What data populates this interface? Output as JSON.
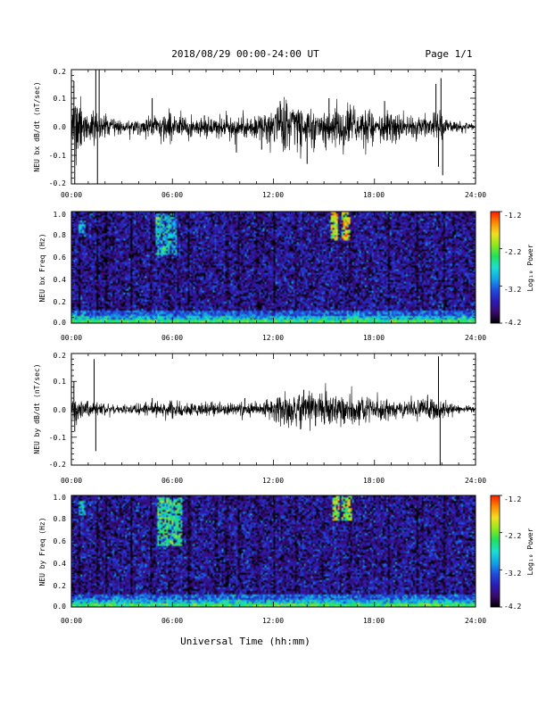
{
  "header": {
    "title": "2018/08/29  00:00-24:00 UT",
    "page": "Page 1/1"
  },
  "footer": {
    "xlabel": "Universal Time (hh:mm)"
  },
  "colors": {
    "trace": "#000000",
    "colorbar_stops": [
      "#000000",
      "#3a0a6e",
      "#2a1db8",
      "#1f4fe0",
      "#12a6e8",
      "#19e0d0",
      "#22e05a",
      "#8fe81c",
      "#f0e020",
      "#ff8a00",
      "#ff1a00"
    ]
  },
  "chart_data": [
    {
      "id": "bx-waveform",
      "type": "line",
      "ylabel": "NEU bx dB/dt (nT/sec)",
      "xlim": [
        0,
        24
      ],
      "ylim": [
        -0.2,
        0.2
      ],
      "xtick_labels": [
        "00:00",
        "06:00",
        "12:00",
        "18:00",
        "24:00"
      ],
      "ytick_labels": [
        "0.2",
        "0.1",
        "0.0",
        "-0.1",
        "-0.2"
      ],
      "ytick_values": [
        0.2,
        0.1,
        0.0,
        -0.1,
        -0.2
      ],
      "envelope": {
        "x_hours": [
          0,
          0.3,
          0.8,
          1.5,
          2.5,
          3.5,
          4.5,
          5.5,
          6.5,
          7.5,
          8.5,
          9.5,
          10.5,
          11.5,
          12.0,
          12.5,
          13.5,
          14.5,
          15.5,
          16.5,
          17.5,
          18.5,
          19.5,
          20.5,
          21.5,
          22.0,
          22.5,
          23.5,
          24.0
        ],
        "amplitude": [
          0.05,
          0.12,
          0.06,
          0.04,
          0.025,
          0.02,
          0.03,
          0.04,
          0.035,
          0.03,
          0.03,
          0.035,
          0.03,
          0.04,
          0.06,
          0.075,
          0.07,
          0.06,
          0.065,
          0.06,
          0.05,
          0.045,
          0.04,
          0.035,
          0.045,
          0.05,
          0.02,
          0.012,
          0.01
        ]
      },
      "spikes": [
        {
          "x": 0.15,
          "y": 0.16
        },
        {
          "x": 0.2,
          "y": -0.2
        },
        {
          "x": 1.45,
          "y": 0.2
        },
        {
          "x": 1.55,
          "y": -0.2
        },
        {
          "x": 1.65,
          "y": 0.2
        },
        {
          "x": 4.8,
          "y": 0.1
        },
        {
          "x": 7.9,
          "y": 0.04
        },
        {
          "x": 9.8,
          "y": -0.09
        },
        {
          "x": 11.3,
          "y": -0.08
        },
        {
          "x": 12.4,
          "y": 0.09
        },
        {
          "x": 14.0,
          "y": -0.13
        },
        {
          "x": 15.3,
          "y": 0.1
        },
        {
          "x": 18.6,
          "y": 0.09
        },
        {
          "x": 21.65,
          "y": 0.15
        },
        {
          "x": 21.8,
          "y": -0.14
        },
        {
          "x": 21.95,
          "y": 0.17
        },
        {
          "x": 22.05,
          "y": -0.17
        }
      ]
    },
    {
      "id": "bx-spectrogram",
      "type": "heatmap",
      "ylabel": "NEU bx Freq (Hz)",
      "xlim": [
        0,
        24
      ],
      "ylim": [
        0.0,
        1.0
      ],
      "xtick_labels": [
        "00:00",
        "06:00",
        "12:00",
        "18:00",
        "24:00"
      ],
      "ytick_labels": [
        "1.0",
        "0.8",
        "0.6",
        "0.4",
        "0.2",
        "0.0"
      ],
      "ytick_values": [
        1.0,
        0.8,
        0.6,
        0.4,
        0.2,
        0.0
      ],
      "colorbar_label": "Log₁₀ Power",
      "colorbar_tick_labels": [
        "-1.2",
        "-2.2",
        "-3.2",
        "-4.2"
      ],
      "colorbar_tick_values": [
        -1.2,
        -2.2,
        -3.2,
        -4.2
      ],
      "zlim": [
        -4.2,
        -1.2
      ],
      "dark_columns_hours": [
        0.4,
        1.5,
        2.0,
        3.5,
        4.7,
        5.8,
        6.9,
        9.2,
        9.9,
        11.0,
        12.0,
        13.3,
        16.5,
        18.8,
        20.5,
        22.1
      ],
      "bright_blobs": [
        {
          "t0": 4.9,
          "t1": 6.2,
          "f0": 0.62,
          "f1": 0.98,
          "power": -2.9
        },
        {
          "t0": 15.3,
          "t1": 15.8,
          "f0": 0.74,
          "f1": 1.0,
          "power": -1.9
        },
        {
          "t0": 16.0,
          "t1": 16.5,
          "f0": 0.74,
          "f1": 1.0,
          "power": -1.9
        },
        {
          "t0": 0.4,
          "t1": 0.8,
          "f0": 0.78,
          "f1": 0.92,
          "power": -3.0
        }
      ]
    },
    {
      "id": "by-waveform",
      "type": "line",
      "ylabel": "NEU by dB/dt (nT/sec)",
      "xlim": [
        0,
        24
      ],
      "ylim": [
        -0.2,
        0.2
      ],
      "xtick_labels": [
        "00:00",
        "06:00",
        "12:00",
        "18:00",
        "24:00"
      ],
      "ytick_labels": [
        "0.2",
        "0.1",
        "0.0",
        "-0.1",
        "-0.2"
      ],
      "ytick_values": [
        0.2,
        0.1,
        0.0,
        -0.1,
        -0.2
      ],
      "envelope": {
        "x_hours": [
          0,
          0.3,
          0.8,
          1.5,
          2.5,
          3.5,
          4.5,
          5.5,
          6.5,
          7.5,
          8.5,
          9.5,
          10.5,
          11.5,
          12.0,
          12.5,
          13.5,
          14.5,
          15.5,
          16.5,
          17.5,
          18.5,
          19.5,
          20.5,
          21.5,
          22.0,
          22.5,
          23.5,
          24.0
        ],
        "amplitude": [
          0.025,
          0.04,
          0.03,
          0.02,
          0.015,
          0.015,
          0.02,
          0.025,
          0.025,
          0.02,
          0.02,
          0.02,
          0.02,
          0.025,
          0.035,
          0.045,
          0.055,
          0.05,
          0.05,
          0.045,
          0.04,
          0.035,
          0.03,
          0.03,
          0.035,
          0.03,
          0.015,
          0.01,
          0.01
        ]
      },
      "spikes": [
        {
          "x": 0.15,
          "y": 0.1
        },
        {
          "x": 0.2,
          "y": -0.08
        },
        {
          "x": 1.35,
          "y": 0.18
        },
        {
          "x": 1.45,
          "y": -0.15
        },
        {
          "x": 4.8,
          "y": 0.04
        },
        {
          "x": 10.3,
          "y": 0.04
        },
        {
          "x": 13.8,
          "y": 0.07
        },
        {
          "x": 14.5,
          "y": -0.06
        },
        {
          "x": 21.8,
          "y": 0.19
        },
        {
          "x": 21.9,
          "y": -0.2
        }
      ]
    },
    {
      "id": "by-spectrogram",
      "type": "heatmap",
      "ylabel": "NEU by Freq (Hz)",
      "xlim": [
        0,
        24
      ],
      "ylim": [
        0.0,
        1.0
      ],
      "xtick_labels": [
        "00:00",
        "06:00",
        "12:00",
        "18:00",
        "24:00"
      ],
      "ytick_labels": [
        "1.0",
        "0.8",
        "0.6",
        "0.4",
        "0.2",
        "0.0"
      ],
      "ytick_values": [
        1.0,
        0.8,
        0.6,
        0.4,
        0.2,
        0.0
      ],
      "colorbar_label": "Log₁₀ Power",
      "colorbar_tick_labels": [
        "-1.2",
        "-2.2",
        "-3.2",
        "-4.2"
      ],
      "colorbar_tick_values": [
        -1.2,
        -2.2,
        -3.2,
        -4.2
      ],
      "zlim": [
        -4.2,
        -1.2
      ],
      "dark_columns_hours": [
        0.4,
        1.5,
        2.0,
        3.5,
        4.7,
        5.8,
        6.9,
        9.2,
        9.9,
        11.0,
        12.0,
        13.3,
        16.5,
        18.8,
        20.5,
        22.1
      ],
      "bright_blobs": [
        {
          "t0": 5.0,
          "t1": 6.5,
          "f0": 0.55,
          "f1": 0.98,
          "power": -2.6
        },
        {
          "t0": 15.4,
          "t1": 15.9,
          "f0": 0.78,
          "f1": 1.0,
          "power": -2.1
        },
        {
          "t0": 16.0,
          "t1": 16.6,
          "f0": 0.78,
          "f1": 1.0,
          "power": -2.1
        },
        {
          "t0": 0.4,
          "t1": 0.8,
          "f0": 0.82,
          "f1": 0.95,
          "power": -2.9
        }
      ]
    }
  ]
}
